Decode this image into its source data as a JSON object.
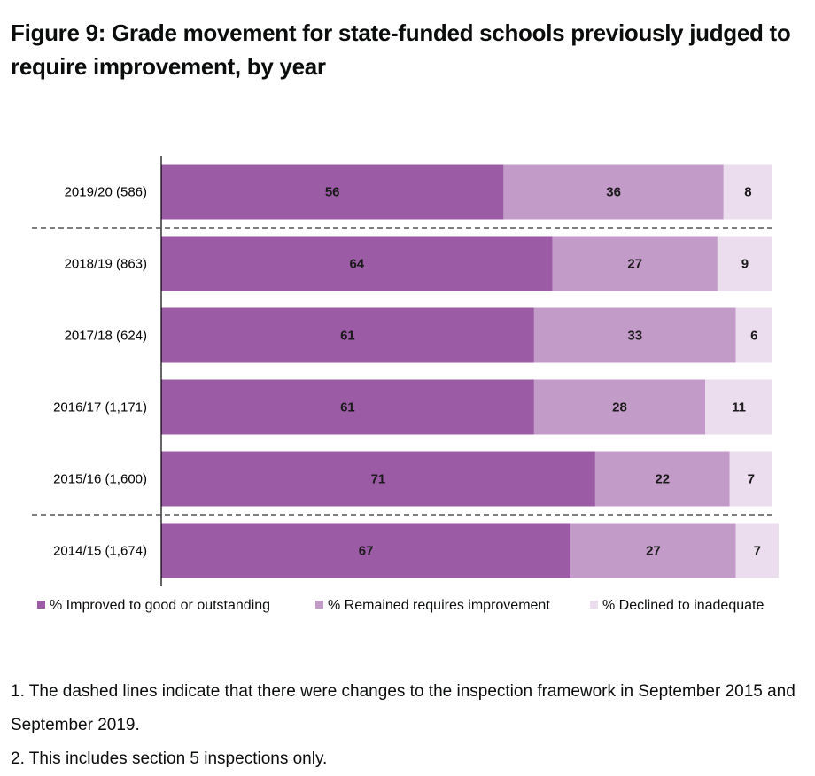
{
  "title": "Figure 9: Grade movement for state-funded schools previously judged to require improvement, by year",
  "chart_data": {
    "type": "bar",
    "orientation": "horizontal",
    "stacked": true,
    "categories": [
      "2019/20 (586)",
      "2018/19 (863)",
      "2017/18 (624)",
      "2016/17 (1,171)",
      "2015/16 (1,600)",
      "2014/15 (1,674)"
    ],
    "series": [
      {
        "name": "% Improved to good or outstanding",
        "color": "#9b5ba5",
        "values": [
          56,
          64,
          61,
          61,
          71,
          67
        ]
      },
      {
        "name": "% Remained requires improvement",
        "color": "#c39bc8",
        "values": [
          36,
          27,
          33,
          28,
          22,
          27
        ]
      },
      {
        "name": "% Declined to inadequate",
        "color": "#ebdcee",
        "values": [
          8,
          9,
          6,
          11,
          7,
          7
        ]
      }
    ],
    "xlim": [
      0,
      100
    ],
    "dashed_lines_after_categories": [
      "2019/20 (586)",
      "2015/16 (1,600)"
    ],
    "legend_position": "bottom",
    "grid": false
  },
  "notes": [
    "1. The dashed lines indicate that there were changes to the inspection framework in September 2015 and September 2019.",
    "2. This includes section 5 inspections only."
  ]
}
